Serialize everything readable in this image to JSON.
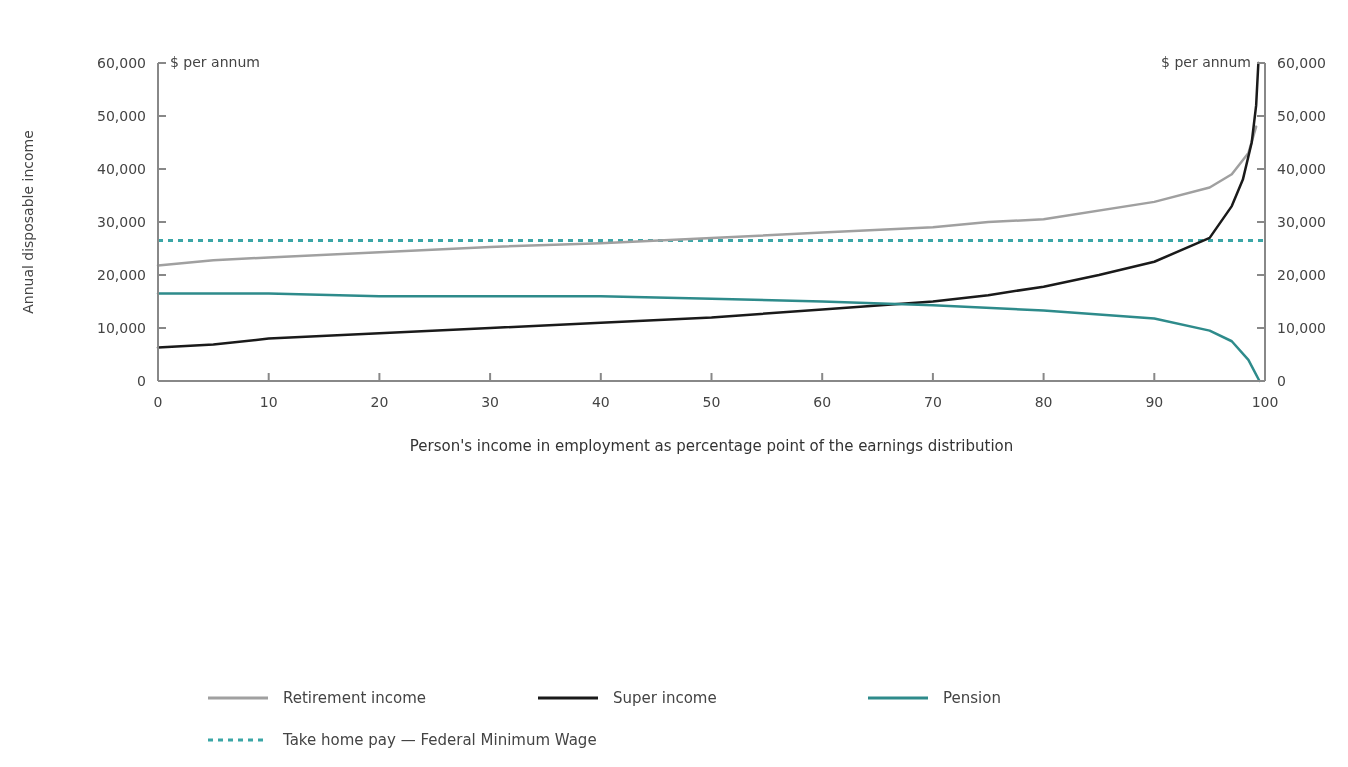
{
  "chart_data": {
    "type": "line",
    "xlabel": "Person's income in employment as percentage point of the earnings distribution",
    "ylabel": "Annual disposable income",
    "annotations": [
      "$ per annum",
      "$ per annum"
    ],
    "xlim": [
      0,
      100
    ],
    "xticks": [
      0,
      10,
      20,
      30,
      40,
      50,
      60,
      70,
      80,
      90,
      100
    ],
    "ylim": [
      0,
      60000
    ],
    "yticks": [
      {
        "value": 0,
        "label": "0"
      },
      {
        "value": 10000,
        "label": "10,000"
      },
      {
        "value": 20000,
        "label": "20,000"
      },
      {
        "value": 30000,
        "label": "30,000"
      },
      {
        "value": 40000,
        "label": "40,000"
      },
      {
        "value": 50000,
        "label": "50,000"
      },
      {
        "value": 60000,
        "label": "60,000"
      }
    ],
    "y2lim": [
      0,
      60000
    ],
    "y2ticks": [
      {
        "value": 0,
        "label": "0"
      },
      {
        "value": 10000,
        "label": "10,000"
      },
      {
        "value": 20000,
        "label": "20,000"
      },
      {
        "value": 30000,
        "label": "30,000"
      },
      {
        "value": 40000,
        "label": "40,000"
      },
      {
        "value": 50000,
        "label": "50,000"
      },
      {
        "value": 60000,
        "label": "60,000"
      }
    ],
    "grid": false,
    "legend": "bottom",
    "marker": "none",
    "line_style": "solid",
    "series": [
      {
        "name": "Retirement income",
        "color": "#a0a0a0",
        "x": [
          0,
          5,
          10,
          20,
          30,
          40,
          50,
          60,
          70,
          75,
          80,
          90,
          95,
          97,
          98.5,
          99.2
        ],
        "values": [
          21800,
          22800,
          23300,
          24300,
          25300,
          26000,
          27000,
          28000,
          29000,
          30000,
          30500,
          33800,
          36500,
          39000,
          43000,
          48000
        ]
      },
      {
        "name": "Super income",
        "color": "#1a1a1a",
        "x": [
          0,
          5,
          10,
          20,
          30,
          40,
          50,
          60,
          70,
          75,
          80,
          85,
          90,
          95,
          97,
          98,
          98.8,
          99.2,
          99.4
        ],
        "values": [
          6300,
          6900,
          8000,
          9000,
          10000,
          11000,
          12000,
          13500,
          15000,
          16200,
          17800,
          20000,
          22500,
          27000,
          33000,
          38000,
          45000,
          52000,
          60000
        ]
      },
      {
        "name": "Pension",
        "color": "#2e8b8b",
        "x": [
          0,
          10,
          20,
          40,
          50,
          60,
          70,
          80,
          90,
          95,
          97,
          98.5,
          99.5
        ],
        "values": [
          16500,
          16500,
          16000,
          16000,
          15500,
          15000,
          14300,
          13300,
          11800,
          9500,
          7500,
          4000,
          0
        ]
      }
    ],
    "ref_lines": [
      {
        "axis": "y",
        "value": 26500,
        "label": "Take home pay — Federal Minimum Wage",
        "color": "#3aa6a6",
        "line_style": "dotted"
      }
    ]
  }
}
